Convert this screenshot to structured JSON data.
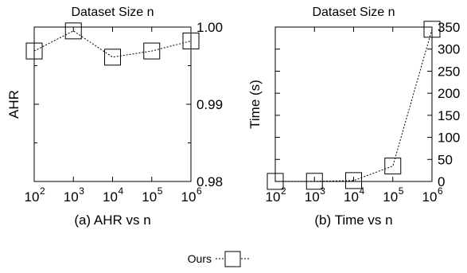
{
  "chart_data": [
    {
      "type": "line",
      "title": "Dataset Size n",
      "caption": "(a) AHR vs n",
      "ylabel": "AHR",
      "xscale": "log10",
      "xlim": [
        100,
        1000000
      ],
      "ylim": [
        0.98,
        1.0
      ],
      "y_axis_side": "right",
      "grid": false,
      "x_ticks": [
        {
          "base": "10",
          "exp": "2"
        },
        {
          "base": "10",
          "exp": "3"
        },
        {
          "base": "10",
          "exp": "4"
        },
        {
          "base": "10",
          "exp": "5"
        },
        {
          "base": "10",
          "exp": "6"
        }
      ],
      "y_ticks": [
        "0.98",
        "0.99",
        "1.00"
      ],
      "y_tick_values": [
        0.98,
        0.99,
        1.0
      ],
      "y_minor_ticks": [
        0.985,
        0.995
      ],
      "series": [
        {
          "name": "Ours",
          "marker": "square",
          "linestyle": "dotted",
          "x": [
            100,
            1000,
            10000,
            100000,
            1000000
          ],
          "y": [
            0.9969,
            0.9995,
            0.9961,
            0.9969,
            0.9982
          ]
        }
      ]
    },
    {
      "type": "line",
      "title": "Dataset Size n",
      "caption": "(b) Time vs n",
      "ylabel": "Time (s)",
      "xscale": "log10",
      "xlim": [
        100,
        1000000
      ],
      "ylim": [
        0,
        350
      ],
      "y_axis_side": "right",
      "grid": false,
      "x_ticks": [
        {
          "base": "10",
          "exp": "2"
        },
        {
          "base": "10",
          "exp": "3"
        },
        {
          "base": "10",
          "exp": "4"
        },
        {
          "base": "10",
          "exp": "5"
        },
        {
          "base": "10",
          "exp": "6"
        }
      ],
      "y_ticks": [
        "0",
        "50",
        "100",
        "150",
        "200",
        "250",
        "300",
        "350"
      ],
      "y_tick_values": [
        0,
        50,
        100,
        150,
        200,
        250,
        300,
        350
      ],
      "series": [
        {
          "name": "Ours",
          "marker": "square",
          "linestyle": "dotted",
          "x": [
            100,
            1000,
            10000,
            100000,
            1000000
          ],
          "y": [
            0.2,
            0.4,
            2,
            35,
            345
          ]
        }
      ]
    }
  ],
  "legend": {
    "label": "Ours",
    "placement": "bottom-center"
  }
}
